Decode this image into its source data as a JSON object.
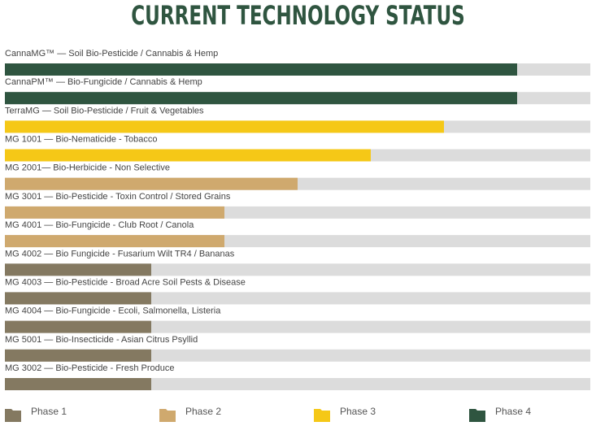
{
  "title": "CURRENT TECHNOLOGY STATUS",
  "colors": {
    "Phase 1": "#847961",
    "Phase 2": "#cfa96e",
    "Phase 3": "#f5c817",
    "Phase 4": "#2f5540",
    "track": "#dcdcdc",
    "title": "#2f5540"
  },
  "chart_data": {
    "type": "bar",
    "orientation": "horizontal",
    "title": "CURRENT TECHNOLOGY STATUS",
    "xlim": [
      0,
      4
    ],
    "grid": false,
    "legend": "bottom",
    "categories": [
      "CannaMG™ — Soil Bio-Pesticide / Cannabis & Hemp",
      "CannaPM™ — Bio-Fungicide / Cannabis & Hemp",
      "TerraMG — Soil Bio-Pesticide / Fruit & Vegetables",
      "MG 1001 — Bio-Nematicide - Tobacco",
      "MG 2001— Bio-Herbicide - Non Selective",
      "MG 3001 — Bio-Pesticide - Toxin Control / Stored Grains",
      "MG 4001 — Bio-Fungicide - Club Root / Canola",
      "MG 4002 — Bio Fungicide - Fusarium Wilt TR4 / Bananas",
      "MG 4003 — Bio-Pesticide - Broad Acre Soil Pests & Disease",
      "MG 4004 — Bio-Fungicide - Ecoli, Salmonella, Listeria",
      "MG 5001 — Bio-Insecticide - Asian Citrus Psyllid",
      "MG 3002 — Bio-Pesticide - Fresh Produce"
    ],
    "values": [
      3.5,
      3.5,
      3.0,
      2.5,
      2.0,
      1.5,
      1.5,
      1.0,
      1.0,
      1.0,
      1.0,
      1.0
    ],
    "phases": [
      "Phase 4",
      "Phase 4",
      "Phase 3",
      "Phase 3",
      "Phase 2",
      "Phase 2",
      "Phase 2",
      "Phase 1",
      "Phase 1",
      "Phase 1",
      "Phase 1",
      "Phase 1"
    ],
    "legend_items": [
      "Phase 1",
      "Phase 2",
      "Phase 3",
      "Phase 4"
    ]
  }
}
